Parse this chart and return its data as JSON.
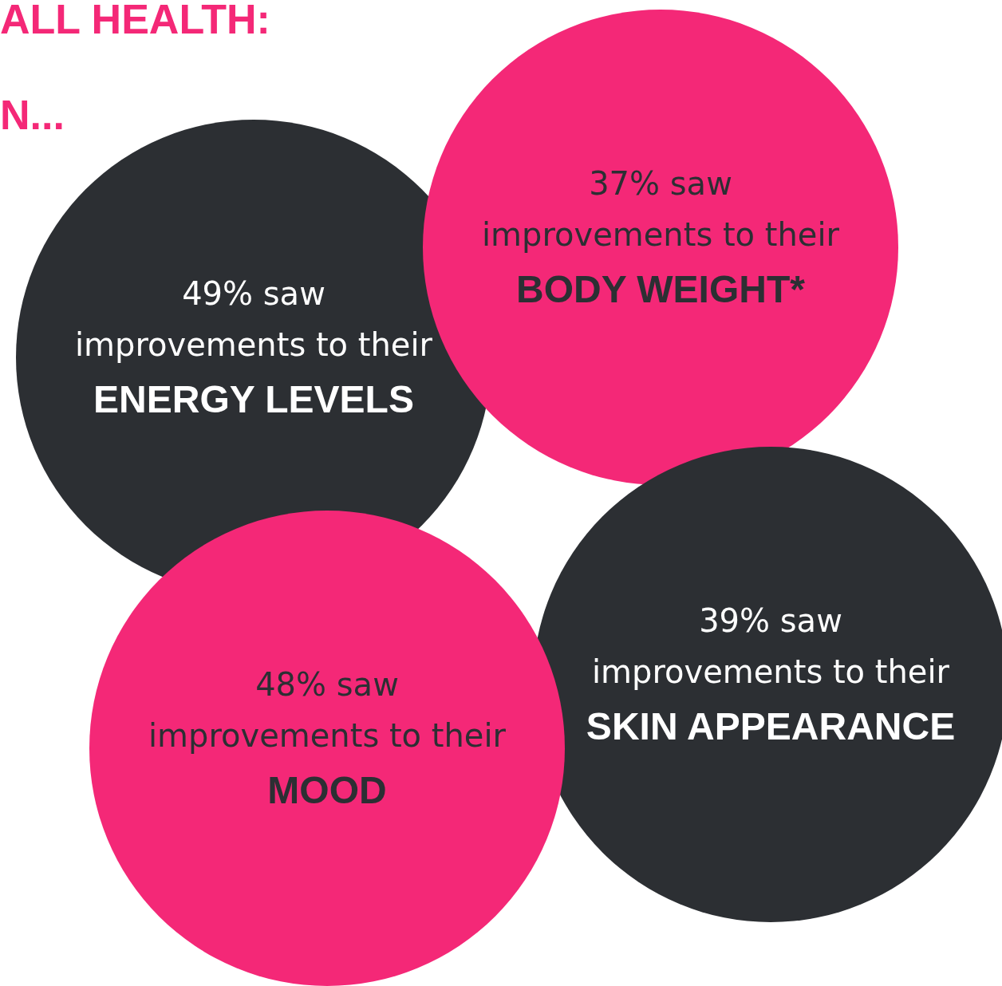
{
  "chart_data": {
    "type": "other",
    "title": "ALL HEALTH:",
    "subtitle": "N...",
    "categories": [
      "ENERGY LEVELS",
      "BODY WEIGHT*",
      "SKIN APPEARANCE",
      "MOOD"
    ],
    "values": [
      49,
      37,
      39,
      48
    ],
    "value_labels": [
      "49% saw",
      "37% saw",
      "39% saw",
      "48% saw"
    ],
    "colors": [
      "#2c2f33",
      "#f42877",
      "#2c2f33",
      "#f42877"
    ],
    "annotations": [
      "improvements to their",
      "improvements to their",
      "improvements to their",
      "improvements to their"
    ]
  }
}
